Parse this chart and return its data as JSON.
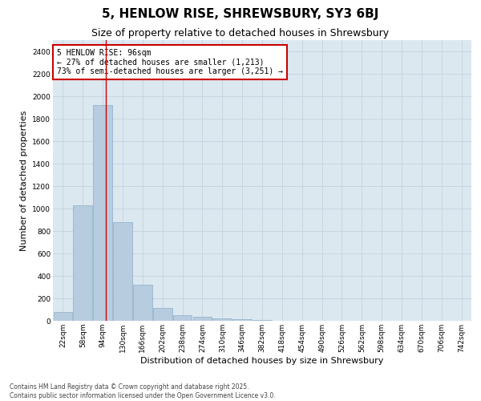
{
  "title1": "5, HENLOW RISE, SHREWSBURY, SY3 6BJ",
  "title2": "Size of property relative to detached houses in Shrewsbury",
  "xlabel": "Distribution of detached houses by size in Shrewsbury",
  "ylabel": "Number of detached properties",
  "bar_labels": [
    "22sqm",
    "58sqm",
    "94sqm",
    "130sqm",
    "166sqm",
    "202sqm",
    "238sqm",
    "274sqm",
    "310sqm",
    "346sqm",
    "382sqm",
    "418sqm",
    "454sqm",
    "490sqm",
    "526sqm",
    "562sqm",
    "598sqm",
    "634sqm",
    "670sqm",
    "706sqm",
    "742sqm"
  ],
  "bar_values": [
    80,
    1030,
    1920,
    880,
    320,
    115,
    50,
    35,
    25,
    15,
    5,
    0,
    0,
    0,
    0,
    0,
    0,
    0,
    0,
    0,
    0
  ],
  "bar_color": "#b8ccdf",
  "bar_edge_color": "#8aafc8",
  "grid_color": "#c8d4e0",
  "background_color": "#dce8f0",
  "red_line_x": 2.15,
  "annotation_title": "5 HENLOW RISE: 96sqm",
  "annotation_line1": "← 27% of detached houses are smaller (1,213)",
  "annotation_line2": "73% of semi-detached houses are larger (3,251) →",
  "annotation_box_color": "#ffffff",
  "annotation_border_color": "#cc0000",
  "footer_line1": "Contains HM Land Registry data © Crown copyright and database right 2025.",
  "footer_line2": "Contains public sector information licensed under the Open Government Licence v3.0.",
  "ylim": [
    0,
    2500
  ],
  "yticks": [
    0,
    200,
    400,
    600,
    800,
    1000,
    1200,
    1400,
    1600,
    1800,
    2000,
    2200,
    2400
  ],
  "title1_fontsize": 11,
  "title2_fontsize": 9,
  "xlabel_fontsize": 8,
  "ylabel_fontsize": 8,
  "tick_fontsize": 6.5,
  "annotation_fontsize": 7,
  "footer_fontsize": 5.5
}
